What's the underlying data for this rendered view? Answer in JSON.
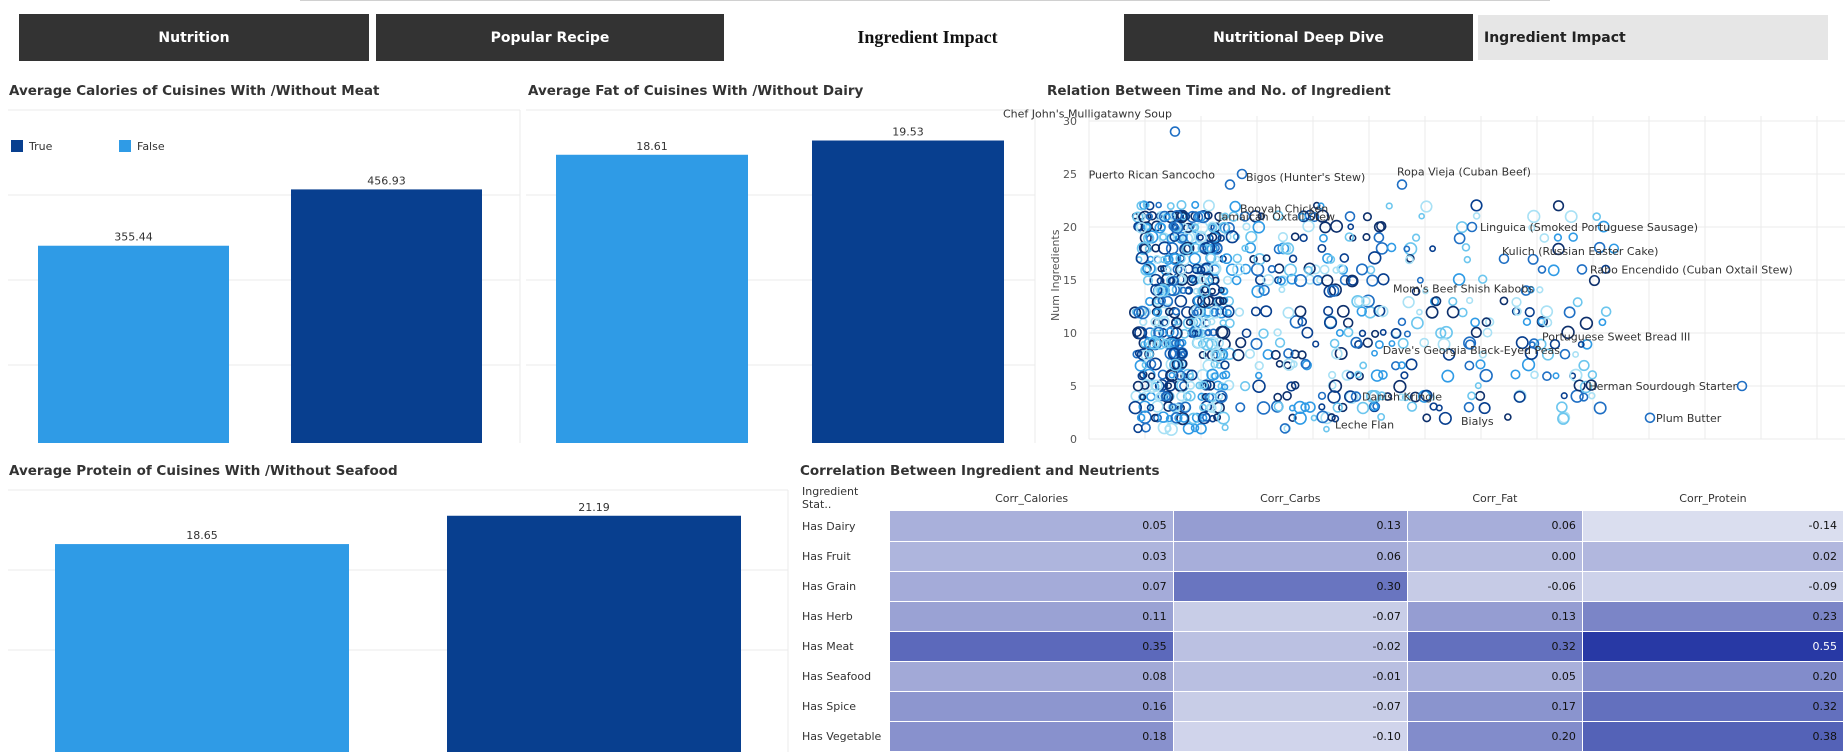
{
  "nav": {
    "btn1": "Nutrition",
    "btn2": "Popular Recipe",
    "title": "Ingredient Impact",
    "btn3": "Nutritional Deep Dive",
    "btn4": "Ingredient Impact"
  },
  "colors": {
    "true_series": "#083f8f",
    "false_series": "#2f9be6",
    "nav_dark": "#333333"
  },
  "titles": {
    "calories": "Average Calories of Cuisines With /Without Meat",
    "fat": "Average Fat of Cuisines With /Without Dairy",
    "scatter": "Relation Between Time and No. of Ingredient",
    "protein": "Average Protein of Cuisines With /Without Seafood",
    "heatmap": "Correlation Between Ingredient and Neutrients"
  },
  "legend": {
    "true_label": "True",
    "false_label": "False"
  },
  "chart_data": [
    {
      "type": "bar",
      "title": "Average Calories of Cuisines With /Without Meat",
      "categories": [
        "False",
        "True"
      ],
      "values": [
        355.44,
        456.93
      ],
      "value_labels": [
        "355.44",
        "456.93"
      ],
      "ylim": [
        0,
        600
      ]
    },
    {
      "type": "bar",
      "title": "Average Fat of Cuisines With /Without Dairy",
      "categories": [
        "False",
        "True"
      ],
      "values": [
        18.61,
        19.53
      ],
      "value_labels": [
        "18.61",
        "19.53"
      ],
      "ylim": [
        0,
        21.5
      ]
    },
    {
      "type": "bar",
      "title": "Average Protein of Cuisines With /Without Seafood",
      "categories": [
        "False",
        "True"
      ],
      "values": [
        18.65,
        21.19
      ],
      "value_labels": [
        "18.65",
        "21.19"
      ],
      "ylim": [
        0,
        23.5
      ]
    },
    {
      "type": "scatter",
      "title": "Relation Between Time and No. of Ingredient",
      "ylabel": "Num Ingredients",
      "yticks": [
        "0",
        "5",
        "10",
        "15",
        "20",
        "25",
        "30"
      ],
      "ylim": [
        0,
        30
      ],
      "grid": true,
      "annotations": [
        "Chef John's Mulligatawny Soup",
        "Puerto Rican Sancocho",
        "Bigos (Hunter's Stew)",
        "Booyah Chicken",
        "Ropa Vieja (Cuban Beef)",
        "Jamaican Oxtail Stew",
        "Linguica (Smoked Portuguese Sausage)",
        "Kulich (Russian Easter Cake)",
        "Rabo Encendido (Cuban Oxtail Stew)",
        "Mom's Beef Shish Kabobs",
        "Portuguese Sweet Bread III",
        "Dave's Georgia Black-Eyed Peas",
        "Herman Sourdough Starter",
        "Leche Flan",
        "Danish Kringle",
        "Bialys",
        "Plum Butter"
      ]
    },
    {
      "type": "heatmap",
      "title": "Correlation Between Ingredient and Neutrients",
      "row_header": "Ingredient Stat..",
      "columns": [
        "Corr_Calories",
        "Corr_Carbs",
        "Corr_Fat",
        "Corr_Protein"
      ],
      "rows": [
        {
          "label": "Has Dairy",
          "values": [
            "0.05",
            "0.13",
            "0.06",
            "-0.14"
          ]
        },
        {
          "label": "Has Fruit",
          "values": [
            "0.03",
            "0.06",
            "0.00",
            "0.02"
          ]
        },
        {
          "label": "Has Grain",
          "values": [
            "0.07",
            "0.30",
            "-0.06",
            "-0.09"
          ]
        },
        {
          "label": "Has Herb",
          "values": [
            "0.11",
            "-0.07",
            "0.13",
            "0.23"
          ]
        },
        {
          "label": "Has Meat",
          "values": [
            "0.35",
            "-0.02",
            "0.32",
            "0.55"
          ]
        },
        {
          "label": "Has Seafood",
          "values": [
            "0.08",
            "-0.01",
            "0.05",
            "0.20"
          ]
        },
        {
          "label": "Has Spice",
          "values": [
            "0.16",
            "-0.07",
            "0.17",
            "0.32"
          ]
        },
        {
          "label": "Has Vegetable",
          "values": [
            "0.18",
            "-0.10",
            "0.20",
            "0.38"
          ]
        }
      ]
    }
  ]
}
